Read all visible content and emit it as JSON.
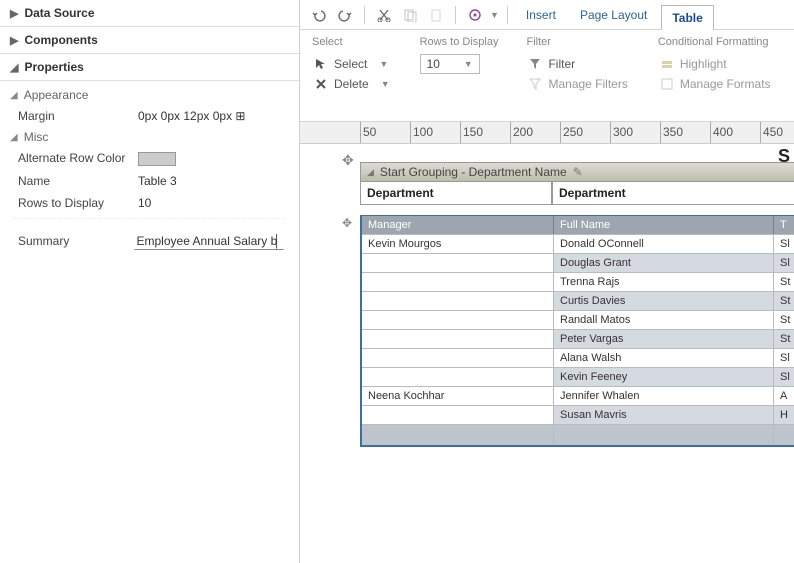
{
  "sidebar": {
    "sections": {
      "dataSource": {
        "title": "Data Source",
        "expanded": false
      },
      "components": {
        "title": "Components",
        "expanded": false
      },
      "properties": {
        "title": "Properties",
        "expanded": true
      }
    },
    "appearance": {
      "title": "Appearance",
      "margin_label": "Margin",
      "margin_value": "0px 0px 12px 0px ⊞"
    },
    "misc": {
      "title": "Misc",
      "alt_row_label": "Alternate Row Color",
      "alt_row_color": "#cccccc",
      "name_label": "Name",
      "name_value": "Table 3",
      "rows_label": "Rows to Display",
      "rows_value": "10",
      "summary_label": "Summary",
      "summary_value": "Employee Annual Salary b"
    }
  },
  "toolbar": {
    "tabs": {
      "insert": "Insert",
      "pageLayout": "Page Layout",
      "table": "Table"
    }
  },
  "ribbon": {
    "select": {
      "title": "Select",
      "select_label": "Select",
      "delete_label": "Delete"
    },
    "rows": {
      "title": "Rows to Display",
      "value": "10"
    },
    "filter": {
      "title": "Filter",
      "filter_label": "Filter",
      "manage_label": "Manage Filters"
    },
    "cond": {
      "title": "Conditional Formatting",
      "highlight_label": "Highlight",
      "manage_label": "Manage Formats"
    }
  },
  "ruler": {
    "marks": [
      50,
      100,
      150,
      200,
      250,
      300,
      350,
      400,
      450
    ]
  },
  "canvas": {
    "grouping_label": "Start Grouping - Department Name",
    "dept_header": "Department",
    "big_letter": "S",
    "table": {
      "columns": [
        "Manager",
        "Full Name",
        "T"
      ],
      "rows": [
        {
          "manager": "Kevin Mourgos",
          "fullname": "Donald OConnell",
          "t": "Sl"
        },
        {
          "manager": "",
          "fullname": "Douglas Grant",
          "t": "Sl"
        },
        {
          "manager": "",
          "fullname": "Trenna Rajs",
          "t": "St"
        },
        {
          "manager": "",
          "fullname": "Curtis Davies",
          "t": "St"
        },
        {
          "manager": "",
          "fullname": "Randall Matos",
          "t": "St"
        },
        {
          "manager": "",
          "fullname": "Peter Vargas",
          "t": "St"
        },
        {
          "manager": "",
          "fullname": "Alana Walsh",
          "t": "Sl"
        },
        {
          "manager": "",
          "fullname": "Kevin Feeney",
          "t": "Sl"
        },
        {
          "manager": "Neena Kochhar",
          "fullname": "Jennifer Whalen",
          "t": "A"
        },
        {
          "manager": "",
          "fullname": "Susan Mavris",
          "t": "H"
        }
      ]
    }
  },
  "colors": {
    "accent": "#2a6496",
    "table_border": "#3b6fa0",
    "header_bg": "#9da5af",
    "alt_row": "#d5d9e0",
    "grouping_grad_a": "#dcdcd5",
    "grouping_grad_b": "#bdbdad"
  }
}
